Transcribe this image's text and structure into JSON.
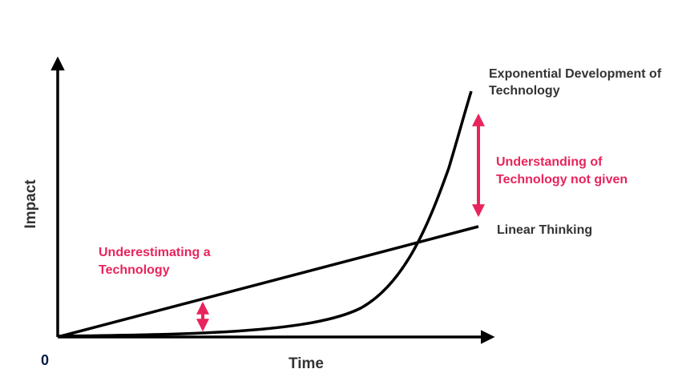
{
  "diagram": {
    "axes": {
      "y_label": "Impact",
      "x_label": "Time",
      "origin_label": "0"
    },
    "curves": {
      "exponential_label_line1": "Exponential Development of",
      "exponential_label_line2": "Technology",
      "linear_label": "Linear Thinking"
    },
    "annotations": {
      "gap_label_line1": "Understanding of",
      "gap_label_line2": "Technology not given",
      "underestimate_label_line1": "Underestimating a",
      "underestimate_label_line2": "Technology"
    },
    "colors": {
      "axis": "#000000",
      "curve": "#000000",
      "text_dark": "#333333",
      "origin": "#0a1a4a",
      "accent": "#e8245c"
    }
  }
}
